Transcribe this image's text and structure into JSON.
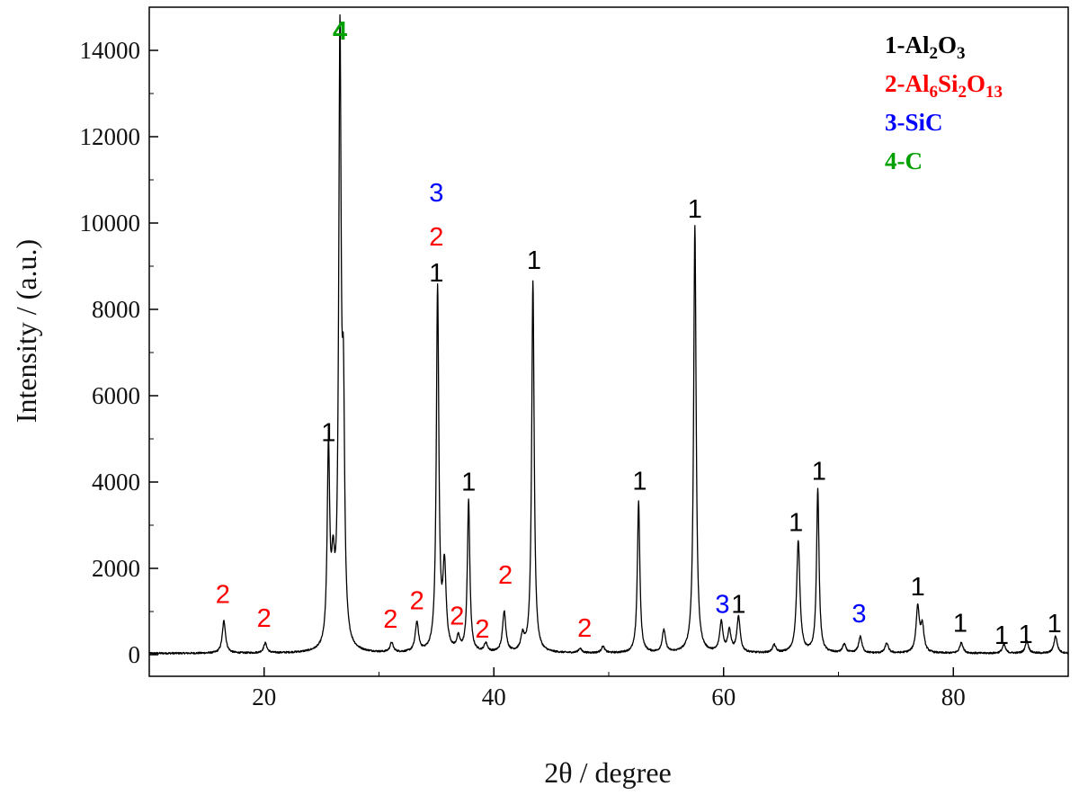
{
  "chart_data": {
    "type": "line",
    "xlabel": "2θ / degree",
    "ylabel": "Intensity / (a.u.)",
    "xlim": [
      10,
      90
    ],
    "ylim": [
      -500,
      15000
    ],
    "xticks": [
      20,
      40,
      60,
      80
    ],
    "yticks": [
      0,
      2000,
      4000,
      6000,
      8000,
      10000,
      12000,
      14000
    ],
    "grid": false,
    "legend_position": "top-right",
    "phase_colors": {
      "1": "#000000",
      "2": "#ff0000",
      "3": "#0000ff",
      "4": "#00a000"
    },
    "legend": [
      {
        "phase": "1",
        "parts": [
          [
            "1-Al",
            ""
          ],
          [
            "2",
            "sub"
          ],
          [
            "O",
            ""
          ],
          [
            "3",
            "sub"
          ]
        ]
      },
      {
        "phase": "2",
        "parts": [
          [
            "2-Al",
            ""
          ],
          [
            "6",
            "sub"
          ],
          [
            "Si",
            ""
          ],
          [
            "2",
            "sub"
          ],
          [
            "O",
            ""
          ],
          [
            "13",
            "sub"
          ]
        ]
      },
      {
        "phase": "3",
        "parts": [
          [
            "3-SiC",
            ""
          ]
        ]
      },
      {
        "phase": "4",
        "parts": [
          [
            "4-C",
            ""
          ]
        ]
      }
    ],
    "peaks": [
      {
        "x": 16.5,
        "y": 750
      },
      {
        "x": 20.1,
        "y": 230
      },
      {
        "x": 25.6,
        "y": 4500
      },
      {
        "x": 26.0,
        "y": 1600
      },
      {
        "x": 26.6,
        "y": 13800
      },
      {
        "x": 26.9,
        "y": 5000
      },
      {
        "x": 31.1,
        "y": 220
      },
      {
        "x": 33.3,
        "y": 680
      },
      {
        "x": 35.1,
        "y": 8400
      },
      {
        "x": 35.7,
        "y": 1900
      },
      {
        "x": 36.9,
        "y": 300
      },
      {
        "x": 37.8,
        "y": 3500
      },
      {
        "x": 39.3,
        "y": 200
      },
      {
        "x": 40.9,
        "y": 950
      },
      {
        "x": 42.5,
        "y": 350
      },
      {
        "x": 43.4,
        "y": 8600
      },
      {
        "x": 47.5,
        "y": 100
      },
      {
        "x": 49.5,
        "y": 150
      },
      {
        "x": 52.6,
        "y": 3500
      },
      {
        "x": 54.8,
        "y": 520
      },
      {
        "x": 57.5,
        "y": 9900
      },
      {
        "x": 59.8,
        "y": 700
      },
      {
        "x": 60.5,
        "y": 500
      },
      {
        "x": 61.3,
        "y": 820
      },
      {
        "x": 64.4,
        "y": 180
      },
      {
        "x": 66.5,
        "y": 2600
      },
      {
        "x": 68.2,
        "y": 3800
      },
      {
        "x": 70.5,
        "y": 200
      },
      {
        "x": 71.9,
        "y": 380
      },
      {
        "x": 74.2,
        "y": 230
      },
      {
        "x": 76.9,
        "y": 1050
      },
      {
        "x": 77.3,
        "y": 600
      },
      {
        "x": 80.7,
        "y": 250
      },
      {
        "x": 84.4,
        "y": 200
      },
      {
        "x": 86.4,
        "y": 280
      },
      {
        "x": 88.9,
        "y": 400
      }
    ],
    "annotations": [
      {
        "text": "2",
        "phase": "2",
        "x": 16.4,
        "y": 1200
      },
      {
        "text": "2",
        "phase": "2",
        "x": 20.0,
        "y": 650
      },
      {
        "text": "1",
        "phase": "1",
        "x": 25.6,
        "y": 4950
      },
      {
        "text": "4",
        "phase": "4",
        "x": 26.6,
        "y": 14250
      },
      {
        "text": "2",
        "phase": "2",
        "x": 31.0,
        "y": 630
      },
      {
        "text": "2",
        "phase": "2",
        "x": 33.3,
        "y": 1050
      },
      {
        "text": "3",
        "phase": "3",
        "x": 35.0,
        "y": 10500
      },
      {
        "text": "2",
        "phase": "2",
        "x": 35.0,
        "y": 9480
      },
      {
        "text": "1",
        "phase": "1",
        "x": 35.0,
        "y": 8650
      },
      {
        "text": "2",
        "phase": "2",
        "x": 36.8,
        "y": 700
      },
      {
        "text": "1",
        "phase": "1",
        "x": 37.8,
        "y": 3800
      },
      {
        "text": "2",
        "phase": "2",
        "x": 39.0,
        "y": 400
      },
      {
        "text": "2",
        "phase": "2",
        "x": 41.0,
        "y": 1650
      },
      {
        "text": "1",
        "phase": "1",
        "x": 43.5,
        "y": 8940
      },
      {
        "text": "2",
        "phase": "2",
        "x": 47.9,
        "y": 420
      },
      {
        "text": "1",
        "phase": "1",
        "x": 52.7,
        "y": 3820
      },
      {
        "text": "1",
        "phase": "1",
        "x": 57.5,
        "y": 10130
      },
      {
        "text": "3",
        "phase": "3",
        "x": 59.9,
        "y": 970
      },
      {
        "text": "1",
        "phase": "1",
        "x": 61.3,
        "y": 970
      },
      {
        "text": "1",
        "phase": "1",
        "x": 66.3,
        "y": 2860
      },
      {
        "text": "1",
        "phase": "1",
        "x": 68.3,
        "y": 4050
      },
      {
        "text": "3",
        "phase": "3",
        "x": 71.8,
        "y": 750
      },
      {
        "text": "1",
        "phase": "1",
        "x": 76.9,
        "y": 1380
      },
      {
        "text": "1",
        "phase": "1",
        "x": 80.6,
        "y": 530
      },
      {
        "text": "1",
        "phase": "1",
        "x": 84.2,
        "y": 250
      },
      {
        "text": "1",
        "phase": "1",
        "x": 86.3,
        "y": 270
      },
      {
        "text": "1",
        "phase": "1",
        "x": 88.8,
        "y": 520
      }
    ]
  }
}
